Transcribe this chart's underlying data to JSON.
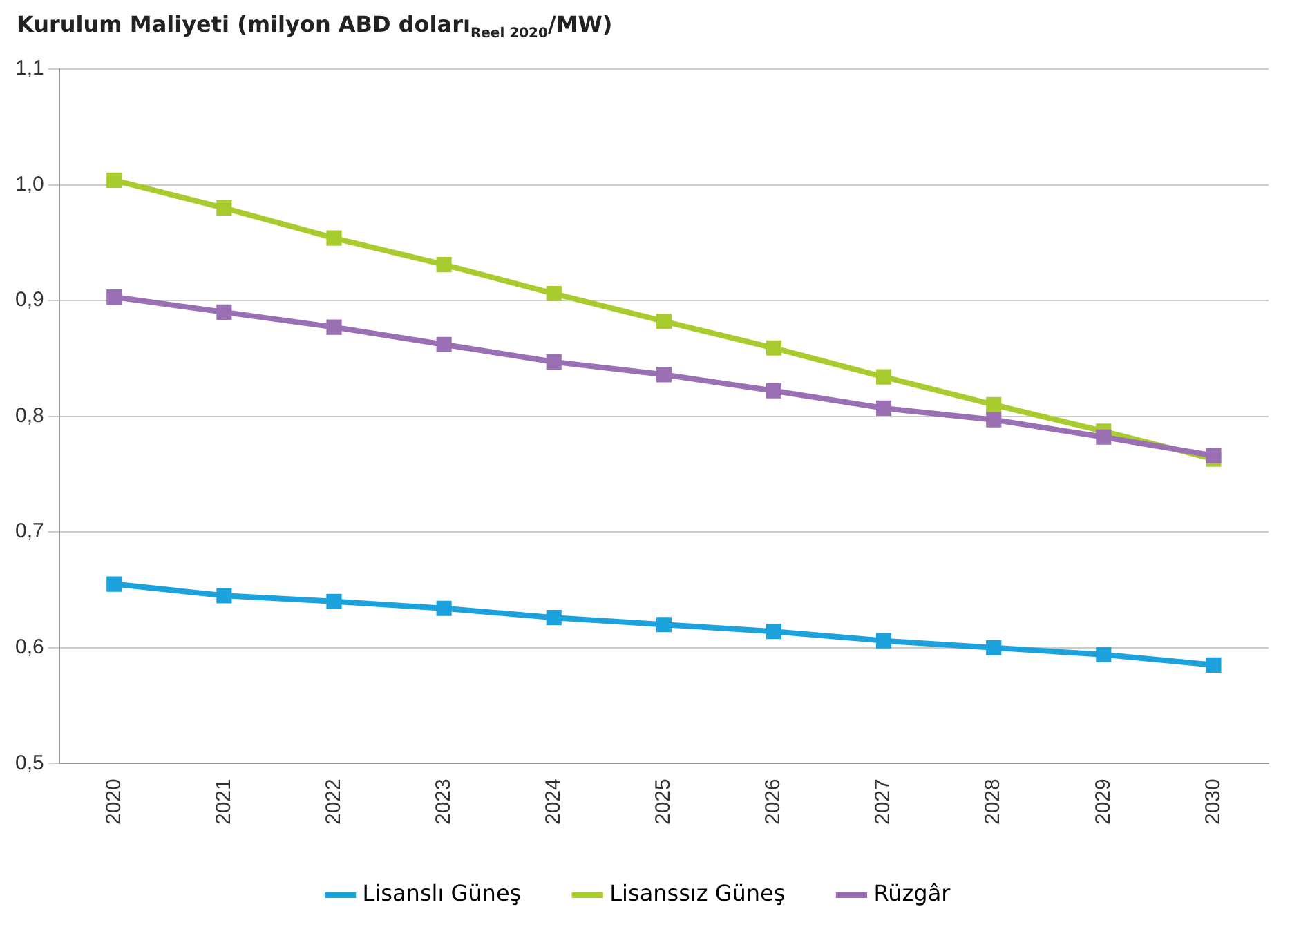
{
  "chart_data": {
    "type": "line",
    "title": "Kurulum Maliyeti (milyon ABD doları$_{Reel 2020}$/MW)",
    "categories": [
      "2020",
      "2021",
      "2022",
      "2023",
      "2024",
      "2025",
      "2026",
      "2027",
      "2028",
      "2029",
      "2030"
    ],
    "series": [
      {
        "name": "Lisanslı Güneş",
        "color": "#1ba1dc",
        "values": [
          0.655,
          0.645,
          0.64,
          0.634,
          0.626,
          0.62,
          0.614,
          0.606,
          0.6,
          0.594,
          0.585
        ]
      },
      {
        "name": "Lisanssız Güneş",
        "color": "#a8cb2e",
        "values": [
          1.004,
          0.98,
          0.954,
          0.931,
          0.906,
          0.882,
          0.859,
          0.834,
          0.81,
          0.787,
          0.763
        ]
      },
      {
        "name": "Rüzgâr",
        "color": "#9b6fb3",
        "values": [
          0.903,
          0.89,
          0.877,
          0.862,
          0.847,
          0.836,
          0.822,
          0.807,
          0.797,
          0.782,
          0.766
        ]
      }
    ],
    "ylim": [
      0.5,
      1.1
    ],
    "yticks": [
      {
        "value": 0.5,
        "label": "0,5"
      },
      {
        "value": 0.6,
        "label": "0,6"
      },
      {
        "value": 0.7,
        "label": "0,7"
      },
      {
        "value": 0.8,
        "label": "0,8"
      },
      {
        "value": 0.9,
        "label": "0,9"
      },
      {
        "value": 1.0,
        "label": "1,0"
      },
      {
        "value": 1.1,
        "label": "1,1"
      }
    ],
    "grid": "y",
    "legend": "bottom",
    "marker": "square",
    "line_style": "solid"
  }
}
